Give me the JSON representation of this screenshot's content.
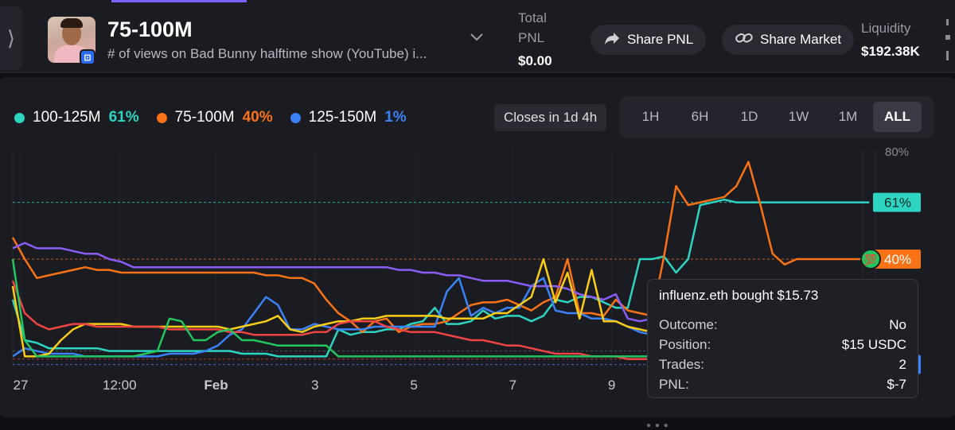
{
  "header": {
    "title": "75-100M",
    "subtitle": "# of views on Bad Bunny halftime show (YouTube) i...",
    "sidebar_toggle": "⟩",
    "badge": "⊡",
    "total_pnl_label_1": "Total",
    "total_pnl_label_2": "PNL",
    "total_pnl_value": "$0.00",
    "share_pnl_label": "Share PNL",
    "share_market_label": "Share Market",
    "liquidity_label": "Liquidity",
    "liquidity_value": "$192.38K"
  },
  "legend": [
    {
      "name": "100-125M",
      "pct": "61%",
      "color": "#2dd4bf"
    },
    {
      "name": "75-100M",
      "pct": "40%",
      "color": "#f97316"
    },
    {
      "name": "125-150M",
      "pct": "1%",
      "color": "#3b82f6"
    }
  ],
  "closes_label": "Closes in 1d 4h",
  "ranges": [
    "1H",
    "6H",
    "1D",
    "1W",
    "1M",
    "ALL"
  ],
  "active_range": "ALL",
  "tooltip": {
    "title": "influenz.eth bought $15.73",
    "rows": [
      {
        "label": "Outcome:",
        "value": "No"
      },
      {
        "label": "Position:",
        "value": "$15 USDC"
      },
      {
        "label": "Trades:",
        "value": "2"
      },
      {
        "label": "PNL:",
        "value": "$-7"
      }
    ]
  },
  "chart_data": {
    "type": "line",
    "x_ticks": [
      "27",
      "12:00",
      "Feb",
      "3",
      "5",
      "7",
      "9"
    ],
    "y_ticks": [
      "80%"
    ],
    "ylim": [
      0,
      80
    ],
    "end_labels": [
      {
        "text": "61%",
        "color": "#2dd4bf"
      },
      {
        "text": "40%",
        "color": "#f97316"
      },
      {
        "text": "1%",
        "color": "#3b82f6"
      }
    ],
    "trade_marker": "💯",
    "x": [
      0,
      0.5,
      1,
      1.5,
      2,
      2.5,
      3,
      3.5,
      4,
      4.5,
      5,
      5.5,
      6,
      6.5,
      7,
      7.5,
      8,
      8.5,
      9,
      9.5,
      10,
      10.5,
      11,
      11.5,
      12,
      12.5,
      13,
      13.5,
      14,
      14.5,
      15,
      15.5,
      16,
      16.5,
      17,
      17.5,
      18,
      18.5,
      19,
      19.5,
      20,
      20.5,
      21,
      21.5,
      22,
      22.5,
      23,
      23.5,
      24,
      24.5,
      25,
      25.5,
      26,
      26.5,
      27,
      27.5,
      28,
      28.5,
      29,
      29.5,
      30,
      30.5,
      31,
      31.5,
      32,
      32.5,
      33,
      33.5,
      34,
      34.5,
      35,
      35.5
    ],
    "series": [
      {
        "color": "#2dd4bf",
        "values": [
          25,
          10,
          9,
          7,
          7,
          7,
          7,
          7,
          6,
          6,
          6,
          6,
          6,
          6,
          6,
          6,
          6,
          6,
          6,
          5,
          5,
          5,
          4,
          4,
          4,
          4,
          4,
          14,
          12,
          13,
          13,
          14,
          14,
          16,
          17,
          22,
          16,
          16,
          17,
          21,
          18,
          19,
          19,
          17,
          19,
          25,
          24,
          26,
          26,
          24,
          22,
          22,
          40,
          40,
          41,
          35,
          40,
          60,
          61,
          62,
          61,
          61,
          61,
          61,
          61,
          61,
          61,
          61,
          61,
          61,
          61,
          61
        ]
      },
      {
        "color": "#f97316",
        "values": [
          48,
          40,
          33,
          34,
          35,
          36,
          37,
          36,
          36,
          35,
          35,
          35,
          35,
          35,
          35,
          35,
          35,
          35,
          35,
          35,
          35,
          34,
          34,
          33,
          33,
          31,
          25,
          20,
          17,
          13,
          17,
          18,
          13,
          15,
          16,
          16,
          17,
          20,
          23,
          24,
          24,
          25,
          23,
          21,
          24,
          26,
          40,
          20,
          20,
          19,
          25,
          21,
          20,
          19,
          41,
          67,
          60,
          61,
          62,
          63,
          67,
          76,
          60,
          42,
          38,
          40,
          40,
          40,
          40,
          40,
          40,
          40
        ]
      },
      {
        "color": "#3b82f6",
        "values": [
          4,
          7,
          6,
          5,
          5,
          5,
          4,
          4,
          4,
          4,
          4,
          4,
          4,
          5,
          5,
          5,
          6,
          8,
          12,
          14,
          20,
          26,
          23,
          14,
          14,
          16,
          15,
          14,
          14,
          14,
          15,
          15,
          15,
          15,
          15,
          15,
          28,
          33,
          19,
          22,
          20,
          22,
          22,
          30,
          33,
          21,
          20,
          20,
          18,
          18,
          17,
          15,
          13,
          12,
          11,
          10,
          9,
          8,
          7,
          6,
          5,
          4,
          3,
          2,
          1,
          1,
          1,
          1,
          1,
          1,
          1,
          1
        ]
      },
      {
        "color": "#8b5cf6",
        "values": [
          44,
          46,
          44,
          44,
          44,
          43,
          42,
          42,
          40,
          39,
          37,
          37,
          37,
          37,
          37,
          37,
          37,
          37,
          37,
          37,
          37,
          37,
          37,
          37,
          37,
          37,
          37,
          37,
          37,
          37,
          37,
          37,
          36,
          36,
          35,
          35,
          34,
          34,
          33,
          32,
          32,
          32,
          31,
          30,
          30,
          30,
          29,
          27,
          26,
          25,
          27,
          18,
          17,
          18,
          19,
          20,
          18,
          17,
          16,
          15,
          14,
          13,
          12,
          12,
          12,
          12,
          12,
          12,
          12,
          12,
          12,
          12
        ]
      },
      {
        "color": "#facc15",
        "values": [
          30,
          4,
          4,
          5,
          10,
          14,
          16,
          16,
          16,
          16,
          15,
          15,
          15,
          15,
          15,
          15,
          15,
          15,
          14,
          15,
          16,
          17,
          19,
          14,
          13,
          15,
          16,
          17,
          17,
          18,
          18,
          19,
          19,
          19,
          19,
          19,
          18,
          18,
          18,
          18,
          20,
          20,
          23,
          26,
          40,
          24,
          35,
          18,
          36,
          17,
          17,
          15,
          14,
          13,
          12,
          11,
          10,
          9,
          8,
          7,
          7,
          7,
          7,
          7,
          7,
          7,
          7,
          7,
          7,
          7,
          7,
          7
        ]
      },
      {
        "color": "#ef4444",
        "values": [
          32,
          20,
          16,
          14,
          15,
          16,
          16,
          15,
          15,
          15,
          15,
          15,
          15,
          14,
          14,
          14,
          14,
          14,
          13,
          13,
          12,
          12,
          12,
          12,
          12,
          13,
          13,
          16,
          17,
          17,
          17,
          15,
          14,
          13,
          13,
          13,
          12,
          11,
          10,
          10,
          9,
          8,
          8,
          7,
          6,
          5,
          5,
          5,
          4,
          4,
          4,
          3,
          3,
          3,
          3,
          3,
          3,
          3,
          3,
          3,
          3,
          3,
          3,
          3,
          3,
          3,
          3,
          3,
          3,
          3,
          3,
          3
        ]
      },
      {
        "color": "#22c55e",
        "values": [
          40,
          10,
          4,
          4,
          4,
          4,
          4,
          4,
          4,
          4,
          4,
          5,
          6,
          18,
          17,
          10,
          10,
          13,
          14,
          10,
          10,
          9,
          8,
          8,
          8,
          8,
          8,
          4,
          4,
          4,
          4,
          4,
          4,
          4,
          4,
          4,
          4,
          4,
          4,
          4,
          4,
          4,
          4,
          4,
          4,
          4,
          4,
          4,
          4,
          4,
          4,
          4,
          4,
          4,
          4,
          4,
          4,
          4,
          4,
          4,
          4,
          4,
          4,
          4,
          4,
          4,
          4,
          4,
          4,
          4,
          4,
          4
        ]
      }
    ]
  }
}
